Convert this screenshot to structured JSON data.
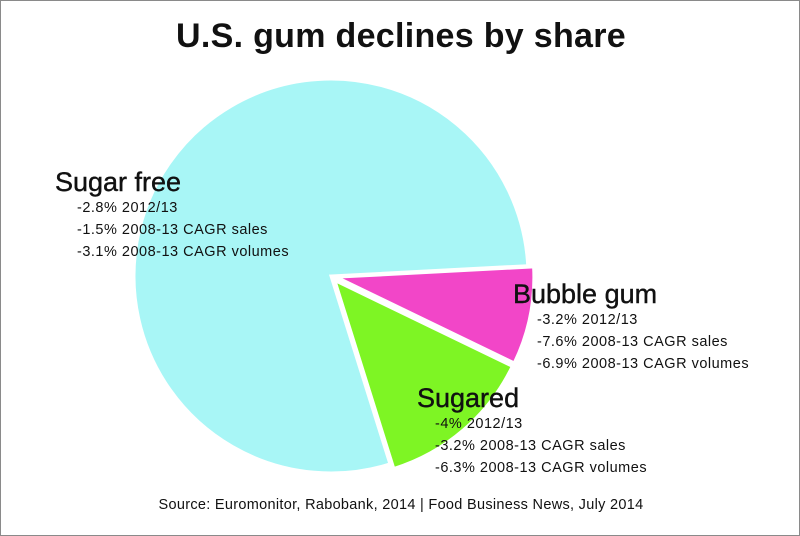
{
  "title": "U.S. gum declines by share",
  "source": "Source: Euromonitor, Rabobank, 2014 | Food Business News, July 2014",
  "colors": {
    "sugar_free": "#a8f6f6",
    "bubble_gum": "#f246c8",
    "sugared": "#7ef524",
    "background": "#ffffff"
  },
  "chart_data": {
    "type": "pie",
    "title": "U.S. gum declines by share",
    "slices": [
      {
        "label": "Sugar free",
        "share_pct": 79,
        "exploded": false,
        "color": "#a8f6f6",
        "notes": [
          "-2.8% 2012/13",
          "-1.5% 2008-13 CAGR sales",
          "-3.1% 2008-13 CAGR volumes"
        ]
      },
      {
        "label": "Bubble gum",
        "share_pct": 8,
        "exploded": true,
        "color": "#f246c8",
        "notes": [
          "-3.2% 2012/13",
          "-7.6% 2008-13 CAGR sales",
          "-6.9% 2008-13 CAGR volumes"
        ]
      },
      {
        "label": "Sugared",
        "share_pct": 13,
        "exploded": true,
        "color": "#7ef524",
        "notes": [
          "-4% 2012/13",
          "-3.2% 2008-13 CAGR sales",
          "-6.3% 2008-13 CAGR volumes"
        ]
      }
    ]
  }
}
